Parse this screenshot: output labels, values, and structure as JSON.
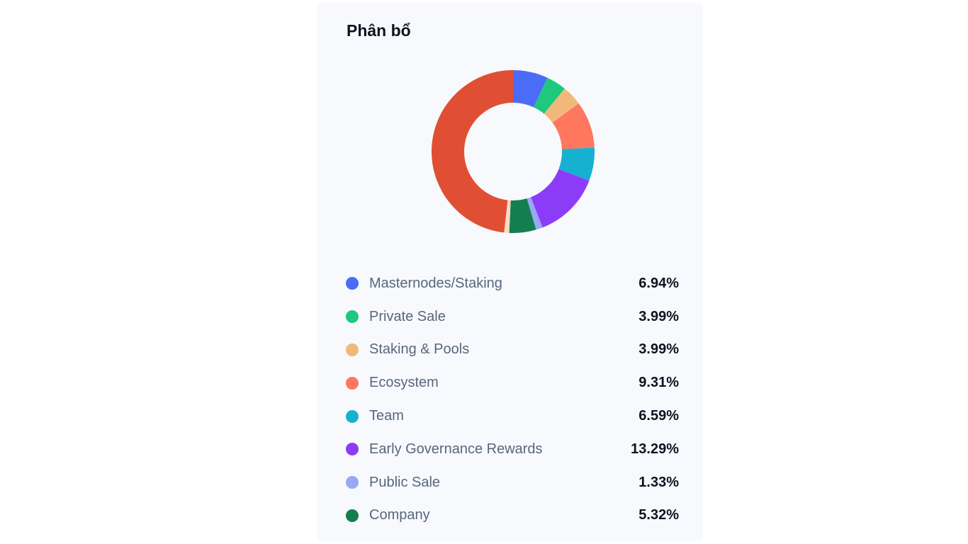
{
  "title": "Phân bổ",
  "chart_data": {
    "type": "pie",
    "donut": true,
    "title": "Phân bổ",
    "series": [
      {
        "name": "Masternodes/Staking",
        "value": 6.94,
        "label": "6.94%",
        "color": "#4a6cf7"
      },
      {
        "name": "Private Sale",
        "value": 3.99,
        "label": "3.99%",
        "color": "#1ec97e"
      },
      {
        "name": "Staking & Pools",
        "value": 3.99,
        "label": "3.99%",
        "color": "#f2b87a"
      },
      {
        "name": "Ecosystem",
        "value": 9.31,
        "label": "9.31%",
        "color": "#ff775f"
      },
      {
        "name": "Team",
        "value": 6.59,
        "label": "6.59%",
        "color": "#16b1d1"
      },
      {
        "name": "Early Governance Rewards",
        "value": 13.29,
        "label": "13.29%",
        "color": "#8c3cf7"
      },
      {
        "name": "Public Sale",
        "value": 1.33,
        "label": "1.33%",
        "color": "#97a8f5"
      },
      {
        "name": "Company",
        "value": 5.32,
        "label": "5.32%",
        "color": "#137f51"
      }
    ],
    "unlisted_segments": [
      {
        "value": 1.0,
        "color": "#fcd9c2"
      },
      {
        "value": 48.24,
        "color": "#e04f33"
      }
    ],
    "legend": "bottom"
  }
}
